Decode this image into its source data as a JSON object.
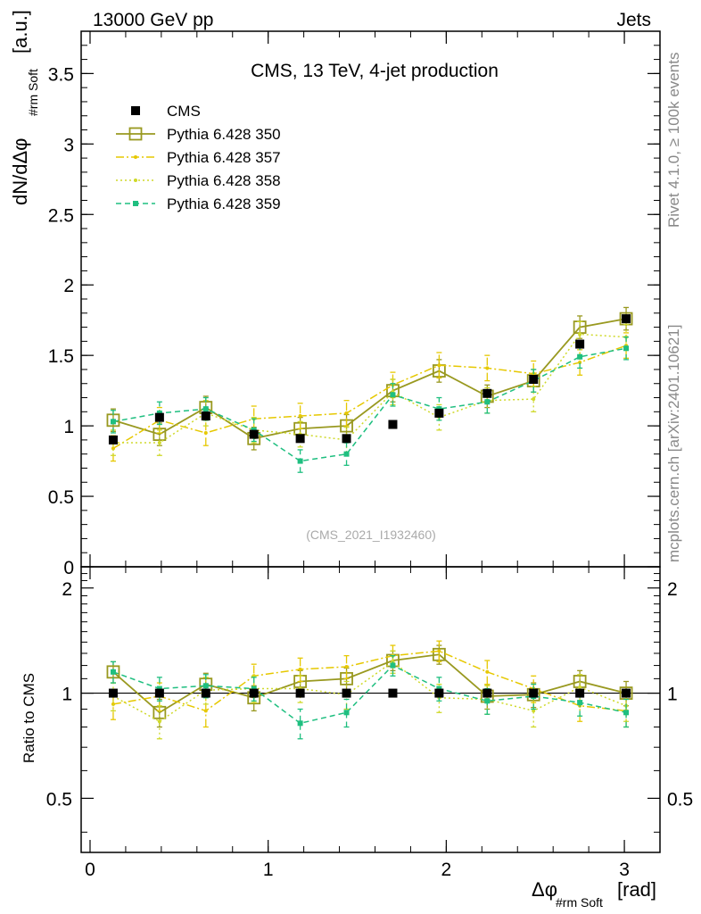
{
  "header": {
    "left": "13000 GeV pp",
    "right": "Jets"
  },
  "side": {
    "rivet": "Rivet 4.1.0, ≥ 100k events",
    "mcplots": "mcplots.cern.ch [arXiv:2401.10621]"
  },
  "colors": {
    "cms": "#000000",
    "p350": "#999920",
    "p357": "#e6c800",
    "p358": "#cfd92a",
    "p359": "#1fbf80"
  },
  "chart_data": {
    "type": "scatter",
    "title": "CMS, 13 TeV, 4-jet production",
    "analysis_tag": "(CMS_2021_I1932460)",
    "ylabel": "dN/dΔφ",
    "ylabel_sub": "#rm Soft",
    "ylabel_unit": "[a.u.]",
    "xlabel": "Δφ",
    "xlabel_sub": "#rm Soft",
    "xlabel_unit": "[rad]",
    "ratio_ylabel": "Ratio to CMS",
    "xlim": [
      -0.05,
      3.2
    ],
    "ylim": [
      0,
      3.8
    ],
    "ratio_ylim": [
      0.35,
      2.3
    ],
    "xticks": [
      "0",
      "1",
      "2",
      "3"
    ],
    "yticks": [
      "0",
      "0.5",
      "1",
      "1.5",
      "2",
      "2.5",
      "3",
      "3.5"
    ],
    "ratio_yticks": [
      "0.5",
      "1",
      "2"
    ],
    "x": [
      0.13,
      0.39,
      0.65,
      0.92,
      1.18,
      1.44,
      1.7,
      1.96,
      2.23,
      2.49,
      2.75,
      3.01
    ],
    "legend": [
      "CMS",
      "Pythia 6.428 350",
      "Pythia 6.428 357",
      "Pythia 6.428 358",
      "Pythia 6.428 359"
    ],
    "series": [
      {
        "name": "CMS",
        "values": [
          0.9,
          1.06,
          1.07,
          0.94,
          0.91,
          0.91,
          1.01,
          1.09,
          1.23,
          1.33,
          1.58,
          1.76
        ],
        "ratio": [
          1,
          1,
          1,
          1,
          1,
          1,
          1,
          1,
          1,
          1,
          1,
          1
        ],
        "err": 0.02
      },
      {
        "name": "Pythia 6.428 350",
        "values": [
          1.04,
          0.94,
          1.13,
          0.91,
          0.98,
          1.0,
          1.25,
          1.39,
          1.21,
          1.32,
          1.7,
          1.76
        ],
        "ratio": [
          1.15,
          0.88,
          1.06,
          0.97,
          1.08,
          1.1,
          1.24,
          1.29,
          0.98,
          0.99,
          1.08,
          1.0
        ],
        "err": 0.08
      },
      {
        "name": "Pythia 6.428 357",
        "values": [
          0.84,
          1.04,
          0.95,
          1.05,
          1.07,
          1.09,
          1.29,
          1.43,
          1.41,
          1.37,
          1.45,
          1.57
        ],
        "ratio": [
          0.93,
          0.98,
          0.89,
          1.12,
          1.17,
          1.19,
          1.28,
          1.32,
          1.15,
          1.03,
          0.92,
          0.89
        ],
        "err": 0.09
      },
      {
        "name": "Pythia 6.428 358",
        "values": [
          0.88,
          0.88,
          1.09,
          0.97,
          0.94,
          0.9,
          1.24,
          1.06,
          1.18,
          1.19,
          1.65,
          1.63
        ],
        "ratio": [
          0.98,
          0.83,
          1.02,
          1.03,
          1.03,
          0.99,
          1.23,
          0.97,
          0.96,
          0.89,
          1.04,
          0.92
        ],
        "err": 0.09
      },
      {
        "name": "Pythia 6.428 359",
        "values": [
          1.03,
          1.09,
          1.12,
          0.97,
          0.75,
          0.8,
          1.22,
          1.12,
          1.17,
          1.32,
          1.49,
          1.55
        ],
        "ratio": [
          1.15,
          1.03,
          1.05,
          1.03,
          0.82,
          0.88,
          1.2,
          1.03,
          0.95,
          0.98,
          0.94,
          0.88
        ],
        "err": 0.08
      }
    ]
  }
}
